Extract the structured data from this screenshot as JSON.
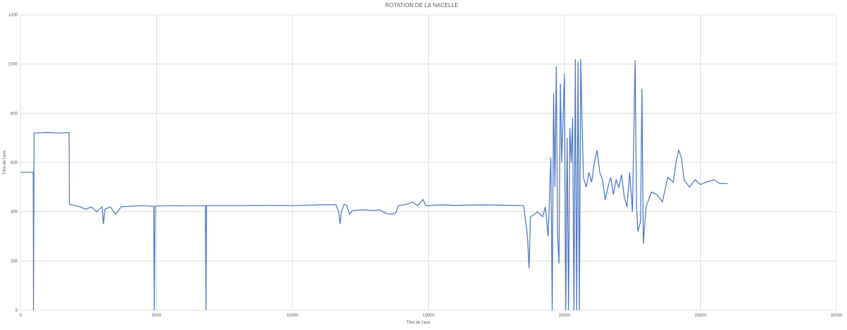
{
  "chart_data": {
    "type": "line",
    "title": "ROTATION DE LA NACELLE",
    "x_label": "Titre de l'axe",
    "y_label": "Titre de l'axe",
    "xlim": [
      0,
      30000
    ],
    "ylim": [
      0,
      1200
    ],
    "xticks": [
      0,
      5000,
      10000,
      15000,
      20000,
      25000,
      30000
    ],
    "yticks": [
      0,
      200,
      400,
      600,
      800,
      1000,
      1200
    ],
    "grid": true,
    "x": [
      0,
      470,
      480,
      500,
      1000,
      1500,
      1790,
      1800,
      2000,
      2200,
      2400,
      2600,
      2800,
      3000,
      3050,
      3100,
      3300,
      3500,
      3700,
      4000,
      4500,
      4900,
      4920,
      4950,
      5500,
      6000,
      6800,
      6820,
      6840,
      8000,
      9000,
      10000,
      11000,
      11600,
      11700,
      11750,
      11800,
      11900,
      12000,
      12100,
      12200,
      12600,
      13000,
      13200,
      13400,
      13600,
      13800,
      13900,
      14200,
      14400,
      14600,
      14800,
      14900,
      15500,
      16000,
      17000,
      18000,
      18500,
      18550,
      18600,
      18650,
      18700,
      18750,
      18900,
      19000,
      19200,
      19300,
      19400,
      19500,
      19550,
      19600,
      19650,
      19700,
      19750,
      19800,
      19850,
      19900,
      20000,
      20050,
      20100,
      20150,
      20200,
      20250,
      20300,
      20350,
      20400,
      20450,
      20500,
      20550,
      20600,
      20650,
      20700,
      20800,
      20900,
      21000,
      21100,
      21200,
      21300,
      21400,
      21500,
      21600,
      21700,
      21800,
      21900,
      22000,
      22100,
      22200,
      22300,
      22400,
      22500,
      22600,
      22650,
      22700,
      22800,
      22850,
      22900,
      23000,
      23200,
      23400,
      23600,
      23800,
      24000,
      24100,
      24200,
      24300,
      24400,
      24600,
      24800,
      25000,
      25200,
      25500,
      25700,
      26000
    ],
    "series": [
      {
        "name": "ROTATION DE LA NACELLE",
        "color": "#4472c4",
        "values": [
          560,
          560,
          0,
          720,
          722,
          720,
          722,
          430,
          425,
          420,
          410,
          420,
          400,
          420,
          350,
          410,
          420,
          390,
          420,
          422,
          425,
          422,
          0,
          423,
          425,
          424,
          425,
          0,
          425,
          425,
          426,
          425,
          428,
          428,
          400,
          350,
          400,
          430,
          425,
          390,
          405,
          408,
          405,
          408,
          395,
          390,
          395,
          425,
          430,
          440,
          425,
          450,
          425,
          428,
          426,
          428,
          426,
          425,
          380,
          340,
          280,
          170,
          380,
          390,
          400,
          380,
          420,
          300,
          620,
          0,
          880,
          500,
          990,
          300,
          190,
          920,
          600,
          960,
          0,
          700,
          0,
          740,
          600,
          780,
          0,
          1020,
          0,
          1010,
          0,
          1020,
          760,
          540,
          500,
          560,
          520,
          600,
          650,
          560,
          530,
          450,
          500,
          540,
          470,
          530,
          500,
          550,
          460,
          420,
          560,
          400,
          1015,
          420,
          320,
          360,
          900,
          270,
          420,
          480,
          470,
          440,
          540,
          520,
          600,
          650,
          620,
          530,
          500,
          530,
          510,
          520,
          530,
          515,
          515
        ]
      }
    ]
  }
}
